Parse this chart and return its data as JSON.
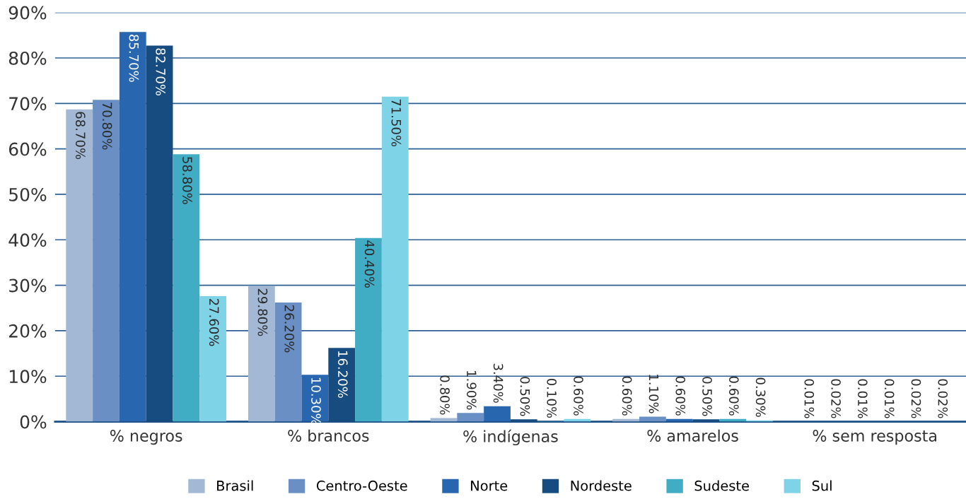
{
  "chart_data": {
    "type": "bar",
    "categories": [
      "% negros",
      "% brancos",
      "% indígenas",
      "% amarelos",
      "% sem resposta"
    ],
    "series": [
      {
        "name": "Brasil",
        "color": "#a3b8d4",
        "values": [
          68.7,
          29.8,
          0.8,
          0.6,
          0.01
        ],
        "value_labels": [
          "68.70%",
          "29.80%",
          "0.80%",
          "0.60%",
          "0.01%"
        ]
      },
      {
        "name": "Centro-Oeste",
        "color": "#6a8fc4",
        "values": [
          70.8,
          26.2,
          1.9,
          1.1,
          0.02
        ],
        "value_labels": [
          "70.80%",
          "26.20%",
          "1.90%",
          "1.10%",
          "0.02%"
        ]
      },
      {
        "name": "Norte",
        "color": "#2866b0",
        "values": [
          85.7,
          10.3,
          3.4,
          0.6,
          0.01
        ],
        "value_labels": [
          "85.70%",
          "10.30%",
          "3.40%",
          "0.60%",
          "0.01%"
        ]
      },
      {
        "name": "Nordeste",
        "color": "#174c80",
        "values": [
          82.7,
          16.2,
          0.5,
          0.5,
          0.01
        ],
        "value_labels": [
          "82.70%",
          "16.20%",
          "0.50%",
          "0.50%",
          "0.01%"
        ]
      },
      {
        "name": "Sudeste",
        "color": "#41adc4",
        "values": [
          58.8,
          40.4,
          0.1,
          0.6,
          0.02
        ],
        "value_labels": [
          "58.80%",
          "40.40%",
          "0.10%",
          "0.60%",
          "0.02%"
        ]
      },
      {
        "name": "Sul",
        "color": "#7fd3e6",
        "values": [
          27.6,
          71.5,
          0.6,
          0.3,
          0.02
        ],
        "value_labels": [
          "27.60%",
          "71.50%",
          "0.60%",
          "0.30%",
          "0.02%"
        ]
      }
    ],
    "ylim": [
      0,
      90
    ],
    "yticks": [
      {
        "value": 0,
        "label": "0%"
      },
      {
        "value": 10,
        "label": "10%"
      },
      {
        "value": 20,
        "label": "20%"
      },
      {
        "value": 30,
        "label": "30%"
      },
      {
        "value": 40,
        "label": "40%"
      },
      {
        "value": 50,
        "label": "50%"
      },
      {
        "value": 60,
        "label": "60%"
      },
      {
        "value": 70,
        "label": "70%"
      },
      {
        "value": 80,
        "label": "80%"
      },
      {
        "value": 90,
        "label": "90%"
      }
    ],
    "grid": "y",
    "legend": "bottom"
  }
}
